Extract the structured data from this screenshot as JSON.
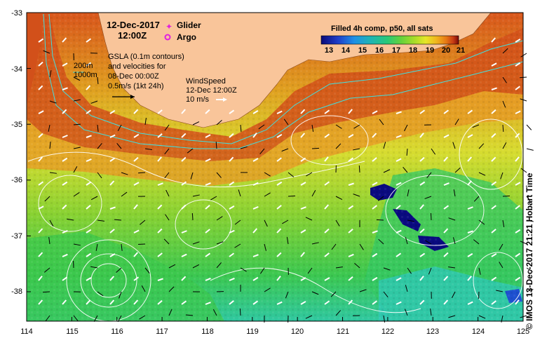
{
  "map": {
    "lon_range": [
      114,
      125
    ],
    "lat_range": [
      -38.5,
      -33
    ],
    "x_ticks": [
      "114",
      "115",
      "116",
      "117",
      "118",
      "119",
      "120",
      "121",
      "122",
      "123",
      "124",
      "125"
    ],
    "y_ticks": [
      "-33",
      "-34",
      "-35",
      "-36",
      "-37",
      "-38"
    ],
    "land_color": "#f9c59a",
    "sst_range_c": [
      13,
      21
    ]
  },
  "header": {
    "date": "12-Dec-2017",
    "time": "12:00Z"
  },
  "legend": {
    "glider_label": "Glider",
    "argo_label": "Argo",
    "glider_color": "#e020e0",
    "argo_color": "#e020e0"
  },
  "info": {
    "depth_200": "200m",
    "depth_1000": "1000m",
    "gsla_line1": "GSLA (0.1m contours)",
    "gsla_line2": "and velocities for",
    "gsla_line3": "08-Dec 00:00Z",
    "gsla_scale": "0.5m/s (1kt 24h)",
    "wind_line1": "WindSpeed",
    "wind_line2": "12-Dec 12:00Z",
    "wind_scale": "10 m/s"
  },
  "colorbar": {
    "title": "Filled 4h comp, p50, all sats",
    "ticks": [
      "13",
      "14",
      "15",
      "16",
      "17",
      "18",
      "19",
      "20",
      "21"
    ],
    "colors": [
      "#0a0a78",
      "#1e3cc8",
      "#1e90e6",
      "#1eb4b4",
      "#28c878",
      "#64d23c",
      "#aadc28",
      "#e6e628",
      "#f0b41e",
      "#e67814",
      "#c83c14",
      "#780a0a"
    ]
  },
  "credit": "©  IMOS 13-Dec-2017 21:21 Hobart Time"
}
